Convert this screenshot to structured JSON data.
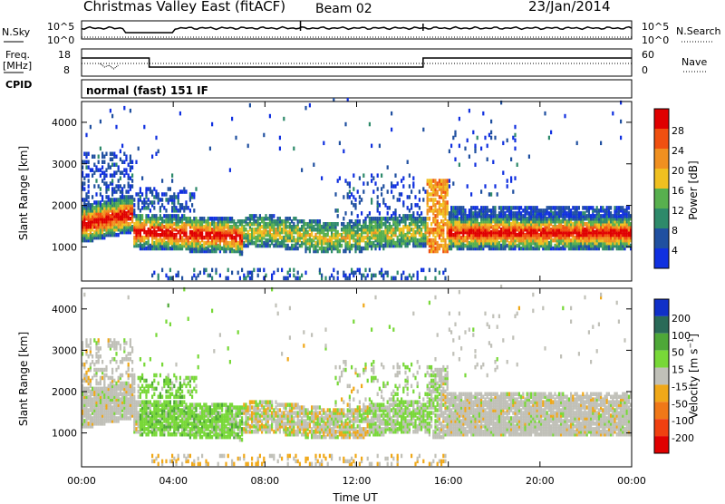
{
  "header": {
    "title": "Christmas Valley East (fitACF)",
    "beam": "Beam 02",
    "date": "23/Jan/2014"
  },
  "labels": {
    "nsky": "N.Sky",
    "nsearch": "N.Search",
    "freq": "Freq.",
    "mhz": "[MHz]",
    "nave": "Nave",
    "cpid": "CPID",
    "cpid_value": "normal (fast) 151 IF",
    "nsky_ticks": [
      "10^5",
      "10^0"
    ],
    "nsearch_ticks": [
      "10^5",
      "10^0"
    ],
    "freq_ticks": [
      "18",
      "8"
    ],
    "nave_ticks": [
      "60",
      "0"
    ]
  },
  "colors": {
    "power": [
      "#1030e0",
      "#2050a0",
      "#2e8a6a",
      "#58b04e",
      "#f0c020",
      "#f09020",
      "#f05010",
      "#e00000"
    ],
    "velocity": [
      "#1030c8",
      "#2a6a58",
      "#4ea838",
      "#78d838",
      "#c0c0b8",
      "#f0a818",
      "#f07818",
      "#f04010",
      "#e00000"
    ]
  },
  "chart_data": [
    {
      "type": "heatmap",
      "name": "power",
      "ylabel": "Slant Range [km]",
      "xlabel": "Time UT",
      "y_ticks": [
        1000,
        2000,
        3000,
        4000
      ],
      "x_ticks": [
        "00:00",
        "04:00",
        "08:00",
        "12:00",
        "16:00",
        "20:00",
        "00:00"
      ],
      "ylim": [
        180,
        4500
      ],
      "xlim": [
        0,
        24
      ],
      "colorbar": {
        "label": "Power [dB]",
        "ticks": [
          "4",
          "8",
          "12",
          "16",
          "20",
          "24",
          "28"
        ]
      }
    },
    {
      "type": "heatmap",
      "name": "velocity",
      "ylabel": "Slant Range [km]",
      "xlabel": "Time UT",
      "y_ticks": [
        1000,
        2000,
        3000,
        4000
      ],
      "x_ticks": [
        "00:00",
        "04:00",
        "08:00",
        "12:00",
        "16:00",
        "20:00",
        "00:00"
      ],
      "ylim": [
        180,
        4500
      ],
      "xlim": [
        0,
        24
      ],
      "colorbar": {
        "label": "Velocity [m s-1]",
        "ticks": [
          "200",
          "100",
          "50",
          "15",
          "-15",
          "-50",
          "-100",
          "-200"
        ]
      }
    }
  ]
}
